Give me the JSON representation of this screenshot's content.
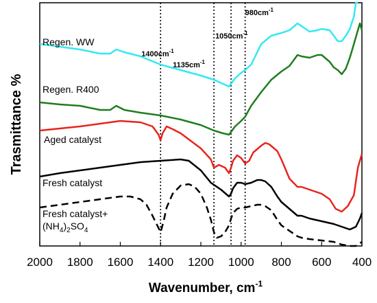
{
  "chart_data": {
    "type": "line",
    "title": "",
    "xlabel": "Wavenumber, cm",
    "xlabel_sup": "-1",
    "ylabel": "Trasmittance %",
    "xlim": [
      2000,
      400
    ],
    "x_reversed": true,
    "x_ticks": [
      2000,
      1800,
      1600,
      1400,
      1200,
      1000,
      800,
      600,
      400
    ],
    "y_ticks": "none",
    "grid": false,
    "legend": "none",
    "reference_lines": [
      {
        "x": 1400,
        "label": "1400cm",
        "sup": "-1"
      },
      {
        "x": 1135,
        "label": "1135cm",
        "sup": "-1"
      },
      {
        "x": 1050,
        "label": "1050cm",
        "sup": "-1"
      },
      {
        "x": 980,
        "label": "980cm",
        "sup": "-1"
      }
    ],
    "series_labels": [
      {
        "series": 0,
        "text": "Regen. WW"
      },
      {
        "series": 1,
        "text": "Regen. R400"
      },
      {
        "series": 2,
        "text": "Aged catalyst"
      },
      {
        "series": 3,
        "text": "Fresh catalyst"
      },
      {
        "series": 4,
        "text": "Fresh catalyst+",
        "line2": "(NH",
        "sub1": "4",
        "mid": ")",
        "sub2": "2",
        "tail": "SO",
        "sub3": "4"
      }
    ],
    "series": [
      {
        "color": "#33e8f5",
        "dash": "solid",
        "points": [
          [
            2000,
            60
          ],
          [
            1900,
            64
          ],
          [
            1800,
            68
          ],
          [
            1700,
            74
          ],
          [
            1650,
            74
          ],
          [
            1620,
            68
          ],
          [
            1580,
            72
          ],
          [
            1500,
            78
          ],
          [
            1400,
            90
          ],
          [
            1300,
            98
          ],
          [
            1200,
            106
          ],
          [
            1135,
            112
          ],
          [
            1090,
            118
          ],
          [
            1060,
            122
          ],
          [
            1050,
            118
          ],
          [
            1030,
            110
          ],
          [
            1000,
            102
          ],
          [
            980,
            98
          ],
          [
            950,
            90
          ],
          [
            900,
            60
          ],
          [
            850,
            48
          ],
          [
            800,
            44
          ],
          [
            760,
            40
          ],
          [
            720,
            30
          ],
          [
            700,
            34
          ],
          [
            660,
            42
          ],
          [
            620,
            40
          ],
          [
            600,
            38
          ],
          [
            560,
            40
          ],
          [
            540,
            48
          ],
          [
            520,
            56
          ],
          [
            500,
            56
          ],
          [
            480,
            48
          ],
          [
            460,
            38
          ],
          [
            440,
            20
          ],
          [
            430,
            0
          ],
          [
            420,
            0
          ]
        ]
      },
      {
        "color": "#1e7d1e",
        "dash": "solid",
        "points": [
          [
            2000,
            145
          ],
          [
            1900,
            148
          ],
          [
            1800,
            150
          ],
          [
            1700,
            156
          ],
          [
            1650,
            156
          ],
          [
            1620,
            150
          ],
          [
            1580,
            156
          ],
          [
            1500,
            160
          ],
          [
            1400,
            164
          ],
          [
            1300,
            170
          ],
          [
            1200,
            178
          ],
          [
            1135,
            186
          ],
          [
            1090,
            190
          ],
          [
            1060,
            192
          ],
          [
            1050,
            188
          ],
          [
            1030,
            180
          ],
          [
            1000,
            172
          ],
          [
            980,
            166
          ],
          [
            950,
            150
          ],
          [
            900,
            130
          ],
          [
            850,
            112
          ],
          [
            800,
            100
          ],
          [
            760,
            92
          ],
          [
            720,
            76
          ],
          [
            700,
            78
          ],
          [
            660,
            80
          ],
          [
            620,
            76
          ],
          [
            600,
            76
          ],
          [
            560,
            86
          ],
          [
            540,
            94
          ],
          [
            520,
            98
          ],
          [
            500,
            104
          ],
          [
            480,
            96
          ],
          [
            460,
            80
          ],
          [
            440,
            60
          ],
          [
            420,
            40
          ],
          [
            410,
            30
          ],
          [
            400,
            40
          ]
        ]
      },
      {
        "color": "#e8241c",
        "dash": "solid",
        "points": [
          [
            2000,
            186
          ],
          [
            1900,
            183
          ],
          [
            1800,
            180
          ],
          [
            1700,
            176
          ],
          [
            1600,
            172
          ],
          [
            1500,
            174
          ],
          [
            1440,
            180
          ],
          [
            1410,
            192
          ],
          [
            1400,
            200
          ],
          [
            1390,
            190
          ],
          [
            1370,
            180
          ],
          [
            1340,
            184
          ],
          [
            1300,
            190
          ],
          [
            1200,
            212
          ],
          [
            1150,
            228
          ],
          [
            1135,
            240
          ],
          [
            1110,
            236
          ],
          [
            1080,
            240
          ],
          [
            1060,
            248
          ],
          [
            1050,
            240
          ],
          [
            1040,
            230
          ],
          [
            1020,
            222
          ],
          [
            1000,
            226
          ],
          [
            980,
            234
          ],
          [
            960,
            230
          ],
          [
            940,
            218
          ],
          [
            900,
            208
          ],
          [
            880,
            204
          ],
          [
            860,
            206
          ],
          [
            820,
            216
          ],
          [
            800,
            228
          ],
          [
            760,
            256
          ],
          [
            720,
            268
          ],
          [
            700,
            268
          ],
          [
            660,
            272
          ],
          [
            620,
            276
          ],
          [
            600,
            278
          ],
          [
            560,
            286
          ],
          [
            530,
            300
          ],
          [
            500,
            304
          ],
          [
            470,
            296
          ],
          [
            440,
            280
          ],
          [
            420,
            240
          ],
          [
            400,
            220
          ]
        ]
      },
      {
        "color": "#000000",
        "dash": "solid",
        "points": [
          [
            2000,
            253
          ],
          [
            1900,
            248
          ],
          [
            1800,
            244
          ],
          [
            1700,
            240
          ],
          [
            1600,
            236
          ],
          [
            1500,
            232
          ],
          [
            1400,
            230
          ],
          [
            1300,
            228
          ],
          [
            1260,
            230
          ],
          [
            1200,
            244
          ],
          [
            1150,
            262
          ],
          [
            1100,
            272
          ],
          [
            1060,
            282
          ],
          [
            1050,
            278
          ],
          [
            1040,
            270
          ],
          [
            1020,
            262
          ],
          [
            1000,
            262
          ],
          [
            980,
            264
          ],
          [
            950,
            262
          ],
          [
            920,
            258
          ],
          [
            900,
            258
          ],
          [
            880,
            260
          ],
          [
            850,
            268
          ],
          [
            820,
            282
          ],
          [
            800,
            290
          ],
          [
            760,
            300
          ],
          [
            720,
            310
          ],
          [
            700,
            310
          ],
          [
            660,
            314
          ],
          [
            600,
            318
          ],
          [
            540,
            322
          ],
          [
            500,
            326
          ],
          [
            460,
            330
          ],
          [
            430,
            326
          ],
          [
            410,
            314
          ],
          [
            400,
            306
          ]
        ]
      },
      {
        "color": "#000000",
        "dash": "dashed",
        "points": [
          [
            2000,
            298
          ],
          [
            1900,
            294
          ],
          [
            1800,
            290
          ],
          [
            1700,
            286
          ],
          [
            1600,
            282
          ],
          [
            1550,
            282
          ],
          [
            1500,
            286
          ],
          [
            1470,
            294
          ],
          [
            1440,
            310
          ],
          [
            1420,
            322
          ],
          [
            1400,
            334
          ],
          [
            1385,
            318
          ],
          [
            1370,
            298
          ],
          [
            1340,
            278
          ],
          [
            1300,
            266
          ],
          [
            1260,
            264
          ],
          [
            1230,
            268
          ],
          [
            1200,
            278
          ],
          [
            1170,
            298
          ],
          [
            1150,
            316
          ],
          [
            1135,
            334
          ],
          [
            1120,
            342
          ],
          [
            1100,
            340
          ],
          [
            1080,
            334
          ],
          [
            1060,
            324
          ],
          [
            1050,
            314
          ],
          [
            1040,
            306
          ],
          [
            1020,
            300
          ],
          [
            1000,
            298
          ],
          [
            980,
            298
          ],
          [
            950,
            296
          ],
          [
            920,
            294
          ],
          [
            900,
            294
          ],
          [
            880,
            296
          ],
          [
            850,
            302
          ],
          [
            820,
            316
          ],
          [
            800,
            324
          ],
          [
            760,
            332
          ],
          [
            720,
            340
          ],
          [
            700,
            342
          ],
          [
            660,
            344
          ],
          [
            600,
            346
          ],
          [
            540,
            348
          ],
          [
            500,
            352
          ],
          [
            460,
            354
          ],
          [
            430,
            354
          ],
          [
            410,
            350
          ],
          [
            400,
            348
          ]
        ]
      }
    ]
  }
}
